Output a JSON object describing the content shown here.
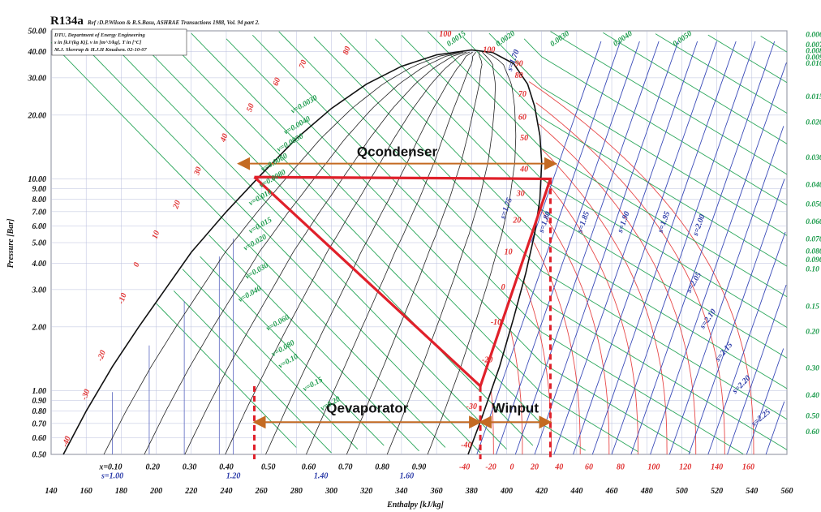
{
  "chart_data": {
    "type": "line",
    "title": "R134a",
    "reference": "Ref :D.P.Wilson & R.S.Basu, ASHRAE Transactions 1988, Vol. 94 part 2.",
    "info_lines": [
      "DTU, Department of Energy Engineering",
      "s in [kJ/(kg K)], v in [m^3/kg], T in [°C]",
      "M.J. Skovrup & H.J.H Knudsen. 02-10-07"
    ],
    "xlabel": "Enthalpy [kJ/kg]",
    "ylabel": "Pressure [Bar]",
    "x_scale": "linear",
    "y_scale": "log",
    "xlim": [
      140,
      560
    ],
    "ylim": [
      0.5,
      50
    ],
    "grid": true,
    "x_ticks": [
      "140",
      "160",
      "180",
      "200",
      "220",
      "240",
      "260",
      "280",
      "300",
      "320",
      "340",
      "360",
      "380",
      "400",
      "420",
      "440",
      "460",
      "480",
      "500",
      "520",
      "540",
      "560"
    ],
    "y_ticks": [
      {
        "value": 50,
        "label": "50.00"
      },
      {
        "value": 40,
        "label": "40.00"
      },
      {
        "value": 30,
        "label": "30.00"
      },
      {
        "value": 20,
        "label": "20.00"
      },
      {
        "value": 10,
        "label": "10.00"
      },
      {
        "value": 9,
        "label": "9.00"
      },
      {
        "value": 8,
        "label": "8.00"
      },
      {
        "value": 7,
        "label": "7.00"
      },
      {
        "value": 6,
        "label": "6.00"
      },
      {
        "value": 5,
        "label": "5.00"
      },
      {
        "value": 4,
        "label": "4.00"
      },
      {
        "value": 3,
        "label": "3.00"
      },
      {
        "value": 2,
        "label": "2.00"
      },
      {
        "value": 1,
        "label": "1.00"
      },
      {
        "value": 0.9,
        "label": "0.90"
      },
      {
        "value": 0.8,
        "label": "0.80"
      },
      {
        "value": 0.7,
        "label": "0.70"
      },
      {
        "value": 0.6,
        "label": "0.60"
      },
      {
        "value": 0.5,
        "label": "0.50"
      }
    ],
    "saturation_dome": {
      "liquid": [
        [
          147,
          0.5
        ],
        [
          160,
          0.8
        ],
        [
          175,
          1.3
        ],
        [
          190,
          2.0
        ],
        [
          205,
          3.0
        ],
        [
          220,
          4.5
        ],
        [
          240,
          7.0
        ],
        [
          260,
          10.5
        ],
        [
          280,
          15.5
        ],
        [
          300,
          21.5
        ],
        [
          320,
          28
        ],
        [
          340,
          34
        ],
        [
          360,
          38.5
        ],
        [
          380,
          40.6
        ]
      ],
      "vapor": [
        [
          380,
          40.6
        ],
        [
          392,
          39.5
        ],
        [
          404,
          35
        ],
        [
          412,
          28
        ],
        [
          416,
          22
        ],
        [
          419,
          16
        ],
        [
          420,
          12
        ],
        [
          419,
          8
        ],
        [
          416,
          5.5
        ],
        [
          411,
          3.6
        ],
        [
          404,
          2.2
        ],
        [
          396,
          1.3
        ],
        [
          386,
          0.75
        ],
        [
          378,
          0.5
        ]
      ]
    },
    "temperature_labels": [
      {
        "text": "-40",
        "h": 150,
        "p": 0.57
      },
      {
        "text": "-30",
        "h": 161,
        "p": 0.95
      },
      {
        "text": "-20",
        "h": 170,
        "p": 1.45
      },
      {
        "text": "-10",
        "h": 182,
        "p": 2.7
      },
      {
        "text": "0",
        "h": 190,
        "p": 3.9
      },
      {
        "text": "10",
        "h": 201,
        "p": 5.4
      },
      {
        "text": "20",
        "h": 213,
        "p": 7.5
      },
      {
        "text": "30",
        "h": 225,
        "p": 10.8
      },
      {
        "text": "40",
        "h": 240,
        "p": 15.5
      },
      {
        "text": "50",
        "h": 255,
        "p": 21.5
      },
      {
        "text": "60",
        "h": 270,
        "p": 28.5
      },
      {
        "text": "70",
        "h": 285,
        "p": 34.5
      },
      {
        "text": "80",
        "h": 310,
        "p": 40
      },
      {
        "text": "100",
        "h": 365,
        "p": 47
      },
      {
        "text": "100",
        "h": 390,
        "p": 39.5
      },
      {
        "text": "90",
        "h": 407,
        "p": 34
      },
      {
        "text": "80",
        "h": 407,
        "p": 30
      },
      {
        "text": "70",
        "h": 409,
        "p": 24.5
      },
      {
        "text": "60",
        "h": 409,
        "p": 19
      },
      {
        "text": "50",
        "h": 410,
        "p": 15.2
      },
      {
        "text": "40",
        "h": 410,
        "p": 10.8
      },
      {
        "text": "30",
        "h": 408,
        "p": 8.3
      },
      {
        "text": "20",
        "h": 406,
        "p": 6.2
      },
      {
        "text": "10",
        "h": 401,
        "p": 4.4
      },
      {
        "text": "0",
        "h": 398,
        "p": 3.0
      },
      {
        "text": "-10",
        "h": 394,
        "p": 2.05
      },
      {
        "text": "-20",
        "h": 389,
        "p": 1.36
      },
      {
        "text": "-30",
        "h": 380,
        "p": 0.82
      },
      {
        "text": "-40",
        "h": 377,
        "p": 0.54
      },
      {
        "text": "-40",
        "h": 376,
        "p": 0.425
      },
      {
        "text": "-20",
        "h": 391,
        "p": 0.425
      },
      {
        "text": "0",
        "h": 403,
        "p": 0.425
      },
      {
        "text": "20",
        "h": 416,
        "p": 0.425
      },
      {
        "text": "40",
        "h": 430,
        "p": 0.425
      },
      {
        "text": "60",
        "h": 447,
        "p": 0.425
      },
      {
        "text": "80",
        "h": 465,
        "p": 0.425
      },
      {
        "text": "100",
        "h": 484,
        "p": 0.425
      },
      {
        "text": "120",
        "h": 502,
        "p": 0.425
      },
      {
        "text": "140",
        "h": 520,
        "p": 0.425
      },
      {
        "text": "160",
        "h": 538,
        "p": 0.425
      }
    ],
    "quality_labels": [
      {
        "text": "x=0.10",
        "h": 174,
        "p": 0.425
      },
      {
        "text": "0.20",
        "h": 198,
        "p": 0.425
      },
      {
        "text": "0.30",
        "h": 219,
        "p": 0.425
      },
      {
        "text": "0.40",
        "h": 240,
        "p": 0.425
      },
      {
        "text": "0.50",
        "h": 264,
        "p": 0.425
      },
      {
        "text": "0.60",
        "h": 287,
        "p": 0.425
      },
      {
        "text": "0.70",
        "h": 308,
        "p": 0.425
      },
      {
        "text": "0.80",
        "h": 329,
        "p": 0.425
      },
      {
        "text": "0.90",
        "h": 350,
        "p": 0.425
      }
    ],
    "entropy_labels_bottom": [
      {
        "text": "s=1.00",
        "h": 175,
        "p": 0.385
      },
      {
        "text": "1.20",
        "h": 244,
        "p": 0.385
      },
      {
        "text": "1.40",
        "h": 294,
        "p": 0.385
      },
      {
        "text": "1.60",
        "h": 343,
        "p": 0.385
      }
    ],
    "entropy_labels_right": [
      {
        "text": "s=1.70",
        "h": 405,
        "p": 36,
        "rot": -70
      },
      {
        "text": "s=1.75",
        "h": 401,
        "p": 7.2,
        "rot": -70
      },
      {
        "text": "s=1.80",
        "h": 423,
        "p": 6.2,
        "rot": -70
      },
      {
        "text": "s=1.85",
        "h": 445,
        "p": 6.2,
        "rot": -70
      },
      {
        "text": "s=1.90",
        "h": 468,
        "p": 6.2,
        "rot": -70
      },
      {
        "text": "s=1.95",
        "h": 491,
        "p": 6.2,
        "rot": -70
      },
      {
        "text": "s=2.00",
        "h": 511,
        "p": 6.0,
        "rot": -70
      },
      {
        "text": "s=2.05",
        "h": 508,
        "p": 3.2,
        "rot": -60
      },
      {
        "text": "s=2.10",
        "h": 516,
        "p": 2.15,
        "rot": -55
      },
      {
        "text": "s=2.15",
        "h": 525,
        "p": 1.5,
        "rot": -50
      },
      {
        "text": "s=2.20",
        "h": 535,
        "p": 1.05,
        "rot": -45
      },
      {
        "text": "s=2.25",
        "h": 546,
        "p": 0.73,
        "rot": -40
      }
    ],
    "volume_labels_top": [
      {
        "text": "0.0015",
        "h": 372,
        "p": 45
      },
      {
        "text": "0.0020",
        "h": 400,
        "p": 45
      },
      {
        "text": "0.0030",
        "h": 431,
        "p": 45
      },
      {
        "text": "0.0040",
        "h": 467,
        "p": 45
      },
      {
        "text": "0.0050",
        "h": 501,
        "p": 45
      }
    ],
    "volume_labels_right": [
      {
        "text": "0.0060",
        "h": 568,
        "p": 48
      },
      {
        "text": "0.0070",
        "h": 568,
        "p": 43
      },
      {
        "text": "0.0080",
        "h": 568,
        "p": 40.2
      },
      {
        "text": "0.0090",
        "h": 568,
        "p": 37.6
      },
      {
        "text": "0.010",
        "h": 568,
        "p": 35.2
      },
      {
        "text": "0.015",
        "h": 568,
        "p": 24.5
      },
      {
        "text": "0.020",
        "h": 568,
        "p": 18.5
      },
      {
        "text": "0.030",
        "h": 568,
        "p": 12.6
      },
      {
        "text": "0.040",
        "h": 568,
        "p": 9.4
      },
      {
        "text": "0.050",
        "h": 568,
        "p": 7.6
      },
      {
        "text": "0.060",
        "h": 568,
        "p": 6.3
      },
      {
        "text": "0.070",
        "h": 568,
        "p": 5.2
      },
      {
        "text": "0.080",
        "h": 568,
        "p": 4.55
      },
      {
        "text": "0.090",
        "h": 568,
        "p": 4.15
      },
      {
        "text": "0.10",
        "h": 568,
        "p": 3.75
      },
      {
        "text": "0.15",
        "h": 568,
        "p": 2.5
      },
      {
        "text": "0.20",
        "h": 568,
        "p": 1.9
      },
      {
        "text": "0.30",
        "h": 568,
        "p": 1.28
      },
      {
        "text": "0.40",
        "h": 568,
        "p": 0.95
      },
      {
        "text": "0.50",
        "h": 568,
        "p": 0.76
      },
      {
        "text": "0.60",
        "h": 568,
        "p": 0.64
      }
    ],
    "volume_labels_inside": [
      {
        "text": "v=0.0030",
        "h": 285,
        "p": 22
      },
      {
        "text": "v=0.0040",
        "h": 281,
        "p": 17.5
      },
      {
        "text": "v=0.0050",
        "h": 277,
        "p": 14.5
      },
      {
        "text": "v=0.0060",
        "h": 268,
        "p": 11.7
      },
      {
        "text": "v=0.0080",
        "h": 267,
        "p": 9.8
      },
      {
        "text": "v=0.010",
        "h": 260,
        "p": 8.0
      },
      {
        "text": "v=0.015",
        "h": 260,
        "p": 5.9
      },
      {
        "text": "v=0.020",
        "h": 257,
        "p": 4.9
      },
      {
        "text": "v=0.030",
        "h": 258,
        "p": 3.6
      },
      {
        "text": "v=0.040",
        "h": 254,
        "p": 2.8
      },
      {
        "text": "v=0.060",
        "h": 270,
        "p": 2.05
      },
      {
        "text": "v=0.080",
        "h": 273,
        "p": 1.55
      },
      {
        "text": "v=0.10",
        "h": 276,
        "p": 1.35
      },
      {
        "text": "v=0.15",
        "h": 290,
        "p": 1.05
      },
      {
        "text": "v=0.20",
        "h": 300,
        "p": 0.85
      }
    ],
    "cycle": {
      "points": [
        [
          256,
          10.2
        ],
        [
          385,
          1.05
        ],
        [
          425,
          10.0
        ],
        [
          256,
          10.2
        ]
      ],
      "condenser_arrow": {
        "h_start": 247,
        "h_end": 428,
        "p": 11.8,
        "label": "Qcondenser"
      },
      "evaporator_arrow": {
        "h_start": 256,
        "h_end": 385,
        "p": 0.71,
        "label": "Qevaporator"
      },
      "winput_arrow": {
        "h_start": 385,
        "h_end": 425,
        "p": 0.71,
        "label": "Winput"
      },
      "dashed_lines": [
        [
          256,
          1.05,
          0.5
        ],
        [
          385,
          1.05,
          0.5
        ],
        [
          425,
          10.0,
          0.5
        ]
      ]
    }
  }
}
